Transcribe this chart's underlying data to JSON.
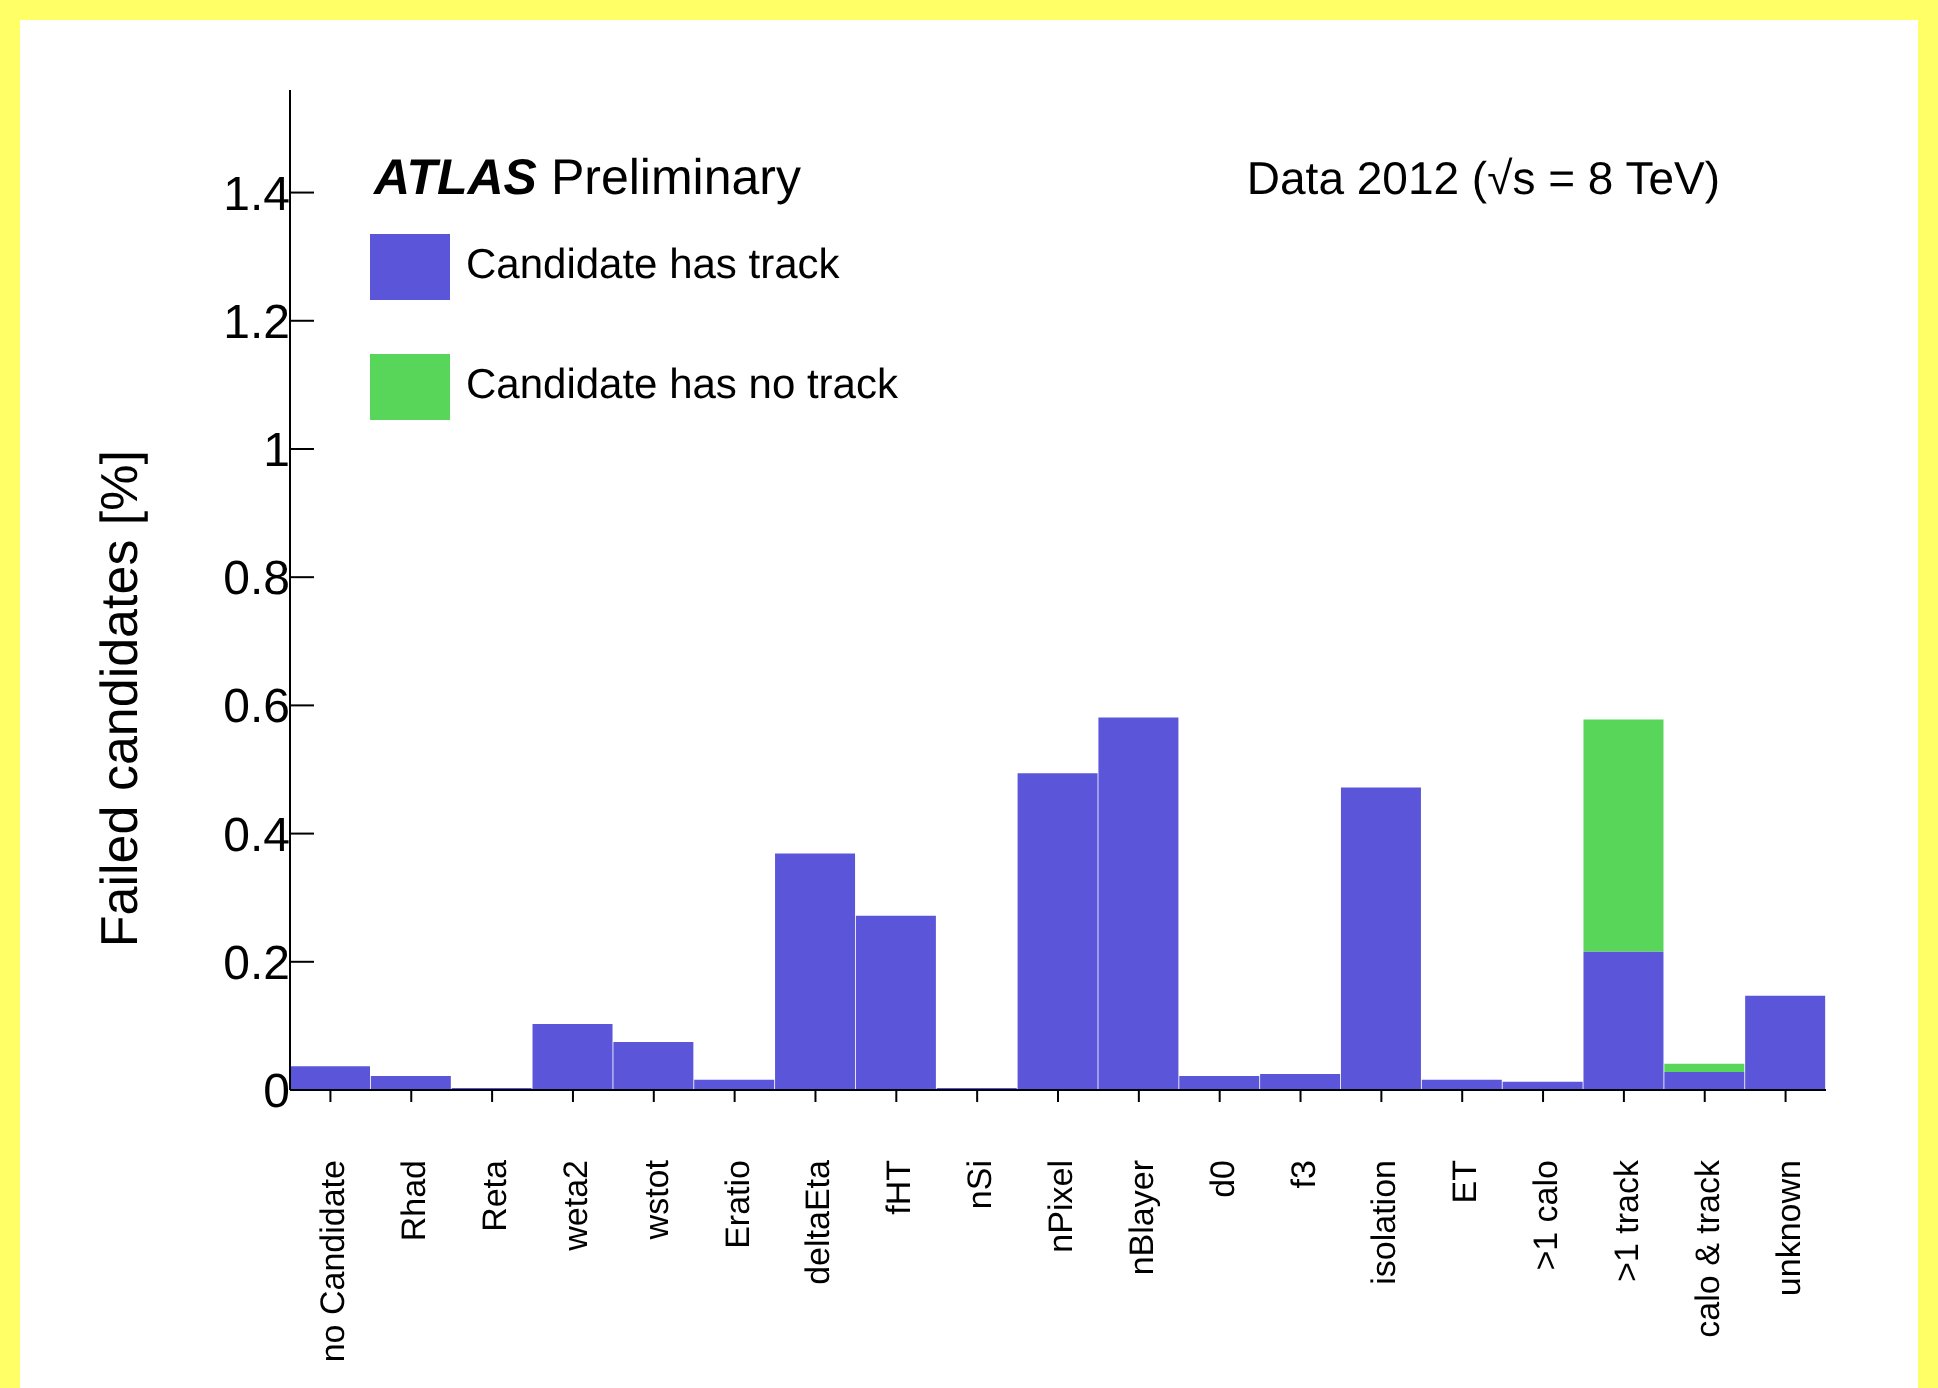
{
  "chart_data": {
    "type": "bar",
    "stacked": true,
    "ylabel": "Failed candidates [%]",
    "annotations": [
      "ATLAS Preliminary",
      "Data 2012  (√s = 8 TeV)"
    ],
    "categories": [
      "no Candidate",
      "Rhad",
      "Reta",
      "weta2",
      "wstot",
      "Eratio",
      "deltaEta",
      "fHT",
      "nSi",
      "nPixel",
      "nBlayer",
      "d0",
      "f3",
      "isolation",
      "ET",
      ">1 calo",
      ">1 track",
      "calo & track",
      "unknown"
    ],
    "series": [
      {
        "name": "Candidate has track",
        "color": "#5b55d9",
        "values": [
          0.037,
          0.022,
          0.003,
          0.103,
          0.075,
          0.016,
          0.369,
          0.272,
          0.003,
          0.494,
          0.581,
          0.022,
          0.025,
          0.472,
          0.016,
          0.013,
          0.216,
          0.028,
          0.147
        ]
      },
      {
        "name": "Candidate has no track",
        "color": "#57d65a",
        "values": [
          0,
          0,
          0,
          0,
          0,
          0,
          0,
          0,
          0,
          0,
          0,
          0,
          0,
          0,
          0,
          0,
          0.362,
          0.013,
          0
        ]
      }
    ],
    "ylim": [
      0,
      1.56
    ],
    "yticks": [
      0,
      0.2,
      0.4,
      0.6,
      0.8,
      1,
      1.2,
      1.4
    ],
    "legend": "top left"
  }
}
